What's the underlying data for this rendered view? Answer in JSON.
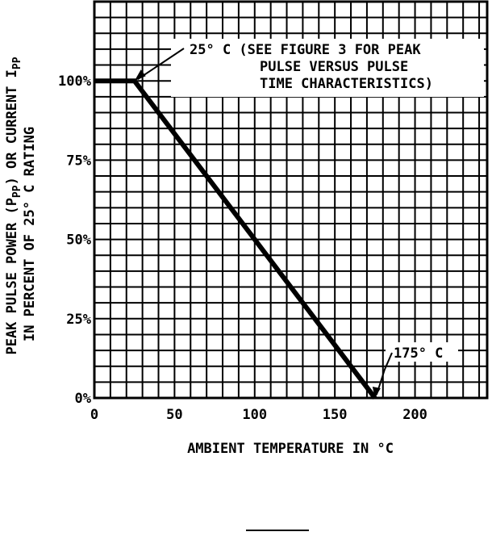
{
  "chart_data": {
    "type": "line",
    "title": "",
    "xlabel": "AMBIENT TEMPERATURE IN °C",
    "ylabel_line1": "PEAK PULSE POWER (P",
    "ylabel_sub1": "PP",
    "ylabel_line1b": ") OR CURRENT I",
    "ylabel_sub2": "PP",
    "ylabel_line2": "IN PERCENT OF 25° C RATING",
    "xlim": [
      0,
      245
    ],
    "ylim": [
      0,
      125
    ],
    "x_ticks": [
      {
        "value": 0,
        "label": "0"
      },
      {
        "value": 50,
        "label": "50"
      },
      {
        "value": 100,
        "label": "100"
      },
      {
        "value": 150,
        "label": "150"
      },
      {
        "value": 200,
        "label": "200"
      }
    ],
    "y_ticks": [
      {
        "value": 0,
        "label": "0%"
      },
      {
        "value": 25,
        "label": "25%"
      },
      {
        "value": 50,
        "label": "50%"
      },
      {
        "value": 75,
        "label": "75%"
      },
      {
        "value": 100,
        "label": "100%"
      }
    ],
    "grid": true,
    "series": [
      {
        "x": [
          0,
          25,
          175
        ],
        "y": [
          100,
          100,
          0
        ]
      }
    ],
    "annotations": [
      {
        "lines": [
          "25° C (SEE FIGURE 3 FOR PEAK",
          "PULSE VERSUS PULSE",
          "TIME CHARACTERISTICS)"
        ],
        "x": 25,
        "y": 100
      },
      {
        "lines": [
          "175° C"
        ],
        "x": 175,
        "y": 0
      }
    ]
  }
}
